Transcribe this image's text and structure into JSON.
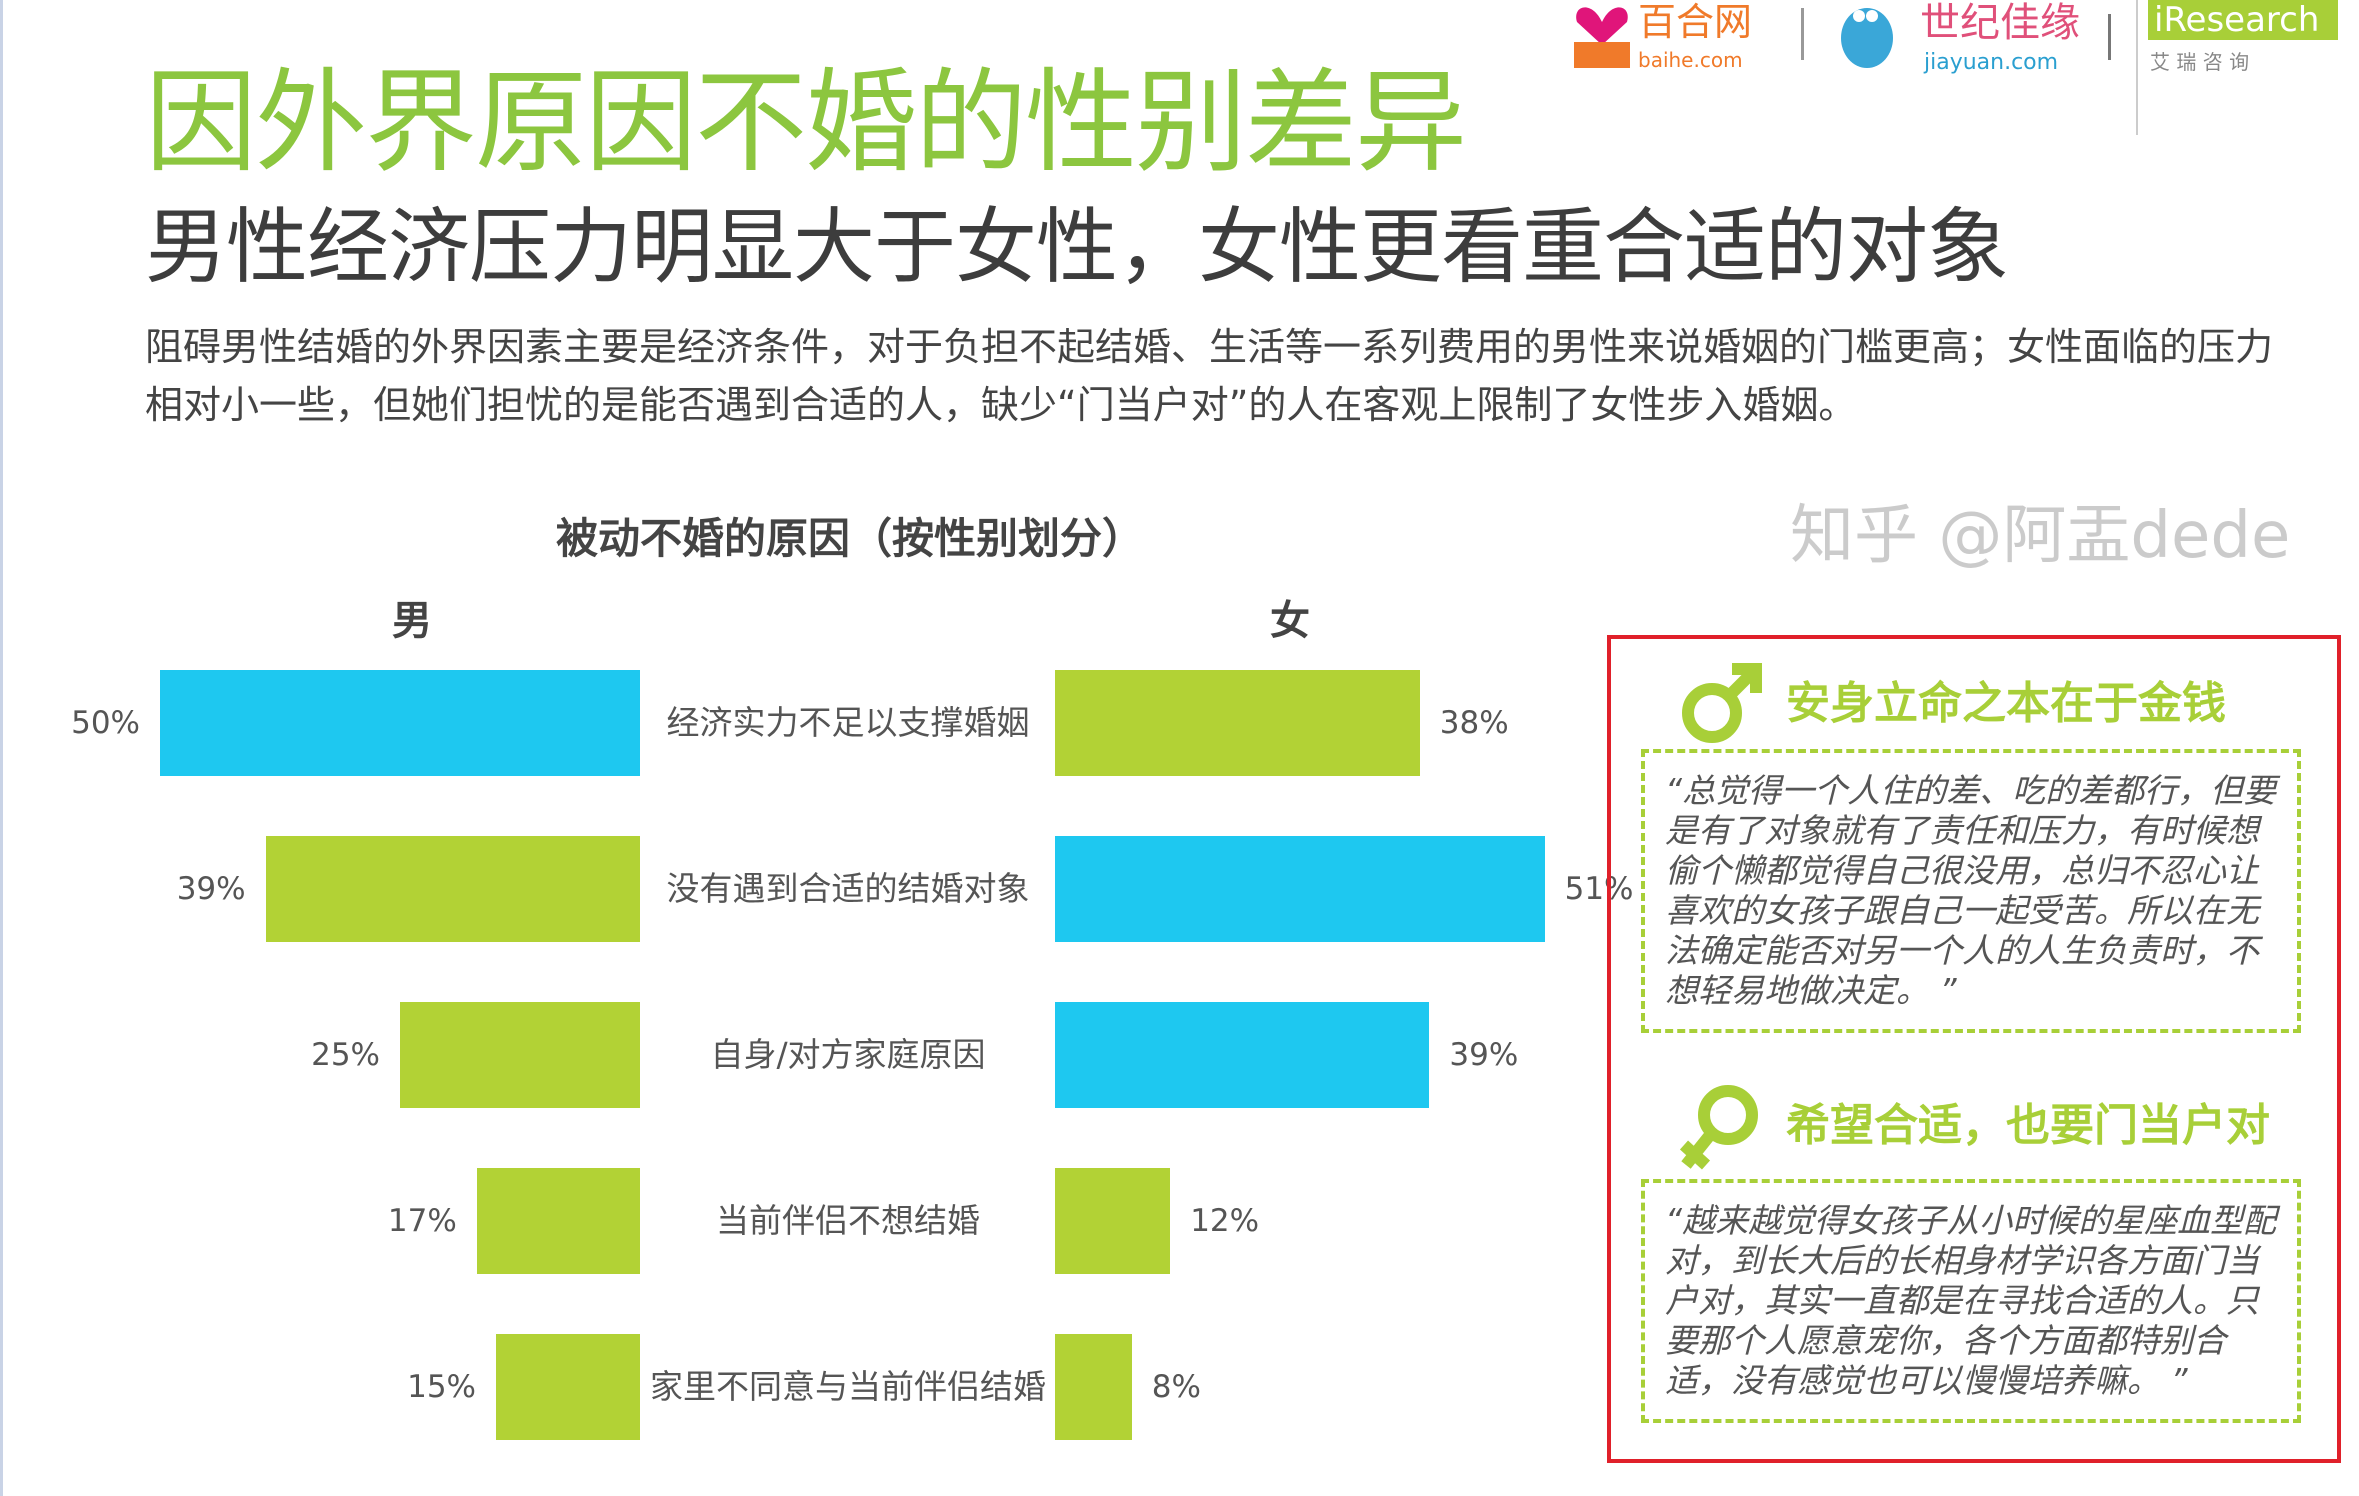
{
  "header": {
    "title": "因外界原因不婚的性别差异",
    "subtitle": "男性经济压力明显大于女性，女性更看重合适的对象",
    "paragraph": "阻碍男性结婚的外界因素主要是经济条件，对于负担不起结婚、生活等一系列费用的男性来说婚姻的门槛更高；女性面临的压力相对小一些，但她们担忧的是能否遇到合适的人，缺少“门当户对”的人在客观上限制了女性步入婚姻。"
  },
  "logos": {
    "baihe": {
      "name": "百合网",
      "domain": "baihe.com"
    },
    "jiayuan": {
      "name": "世纪佳缘",
      "domain": "jiayuan.com"
    },
    "iresearch": {
      "name": "iResearch",
      "cn": "艾 瑞 咨 询"
    }
  },
  "chart_data": {
    "type": "bar",
    "title": "被动不婚的原因（按性别划分）",
    "categories": [
      "经济实力不足以支撑婚姻",
      "没有遇到合适的结婚对象",
      "自身/对方家庭原因",
      "当前伴侣不想结婚",
      "家里不同意与当前伴侣结婚"
    ],
    "series": [
      {
        "name": "男",
        "values": [
          50,
          39,
          25,
          17,
          15
        ],
        "labels": [
          "50%",
          "39%",
          "25%",
          "17%",
          "15%"
        ],
        "colors": [
          "#1ec8f0",
          "#b2d235",
          "#b2d235",
          "#b2d235",
          "#b2d235"
        ]
      },
      {
        "name": "女",
        "values": [
          38,
          51,
          39,
          12,
          8
        ],
        "labels": [
          "38%",
          "51%",
          "39%",
          "12%",
          "8%"
        ],
        "colors": [
          "#b2d235",
          "#1ec8f0",
          "#1ec8f0",
          "#b2d235",
          "#b2d235"
        ]
      }
    ]
  },
  "quotes": [
    {
      "heading": "安身立命之本在于金钱",
      "icon": "male-symbol-icon",
      "text": "“总觉得一个人住的差、吃的差都行，但要是有了对象就有了责任和压力，有时候想偷个懒都觉得自己很没用，总归不忍心让喜欢的女孩子跟自己一起受苦。所以在无法确定能否对另一个人的人生负责时，不想轻易地做决定。 ”"
    },
    {
      "heading": "希望合适，也要门当户对",
      "icon": "female-symbol-icon",
      "text": "“越来越觉得女孩子从小时候的星座血型配对，到长大后的长相身材学识各方面门当户对，其实一直都是在寻找合适的人。只要那个人愿意宠你，各个方面都特别合适，没有感觉也可以慢慢培养嘛。 ”"
    }
  ],
  "watermark": "知乎 @阿盂dede"
}
